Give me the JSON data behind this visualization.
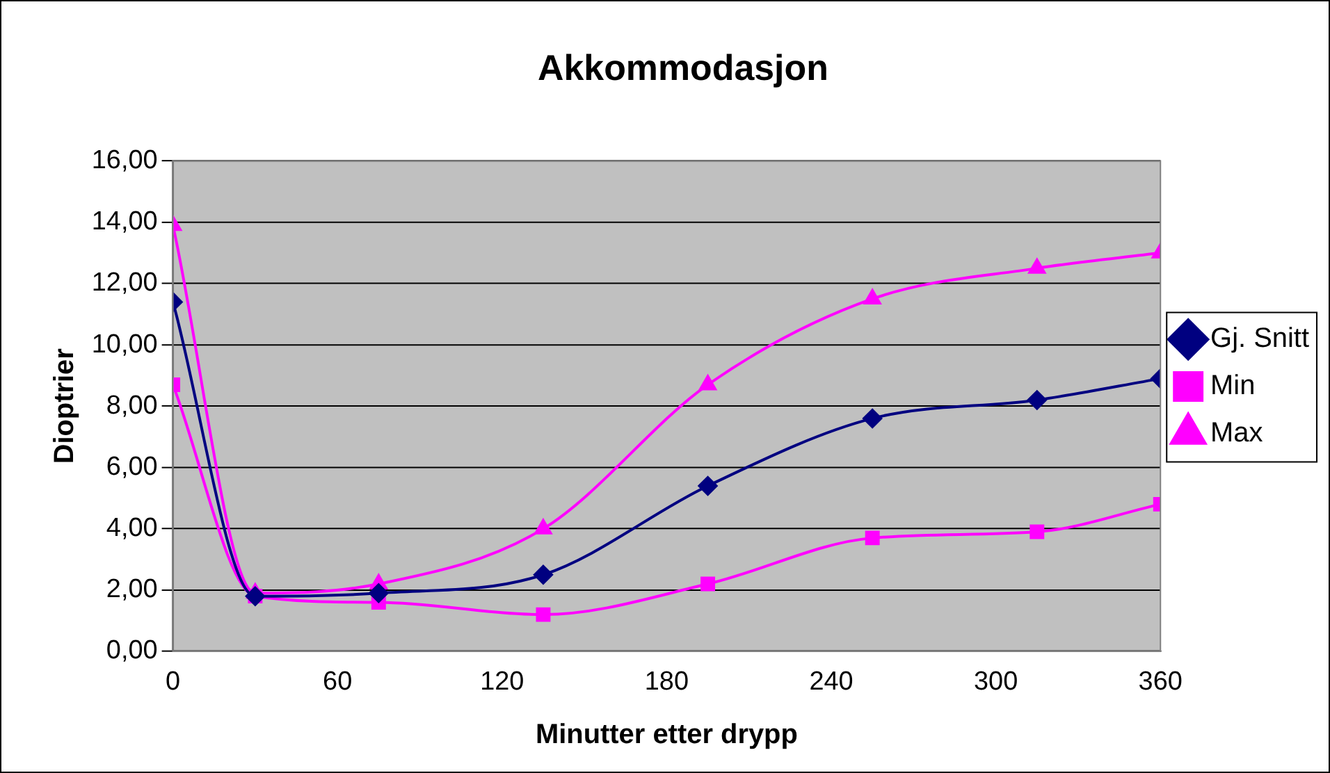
{
  "chart_data": {
    "type": "line",
    "title": "Akkommodasjon",
    "xlabel": "Minutter etter drypp",
    "ylabel": "Dioptrier",
    "x": [
      0,
      30,
      75,
      135,
      195,
      255,
      315,
      360
    ],
    "series": [
      {
        "name": "Gj. Snitt",
        "color": "#000080",
        "marker": "diamond",
        "values": [
          11.4,
          1.8,
          1.9,
          2.5,
          5.4,
          7.6,
          8.2,
          8.9
        ]
      },
      {
        "name": "Min",
        "color": "#ff00ff",
        "marker": "square",
        "values": [
          8.7,
          1.8,
          1.6,
          1.2,
          2.2,
          3.7,
          3.9,
          4.8
        ]
      },
      {
        "name": "Max",
        "color": "#ff00ff",
        "marker": "triangle",
        "values": [
          13.9,
          1.9,
          2.2,
          4.0,
          8.7,
          11.5,
          12.5,
          13.0
        ]
      }
    ],
    "xlim": [
      0,
      360
    ],
    "xticks": [
      0,
      60,
      120,
      180,
      240,
      300,
      360
    ],
    "ylim": [
      0,
      16
    ],
    "yticks": [
      {
        "value": 0,
        "label": "0,00"
      },
      {
        "value": 2,
        "label": "2,00"
      },
      {
        "value": 4,
        "label": "4,00"
      },
      {
        "value": 6,
        "label": "6,00"
      },
      {
        "value": 8,
        "label": "8,00"
      },
      {
        "value": 10,
        "label": "10,00"
      },
      {
        "value": 12,
        "label": "12,00"
      },
      {
        "value": 14,
        "label": "14,00"
      },
      {
        "value": 16,
        "label": "16,00"
      }
    ],
    "grid": "y",
    "legend": "right",
    "line_style": "solid"
  }
}
